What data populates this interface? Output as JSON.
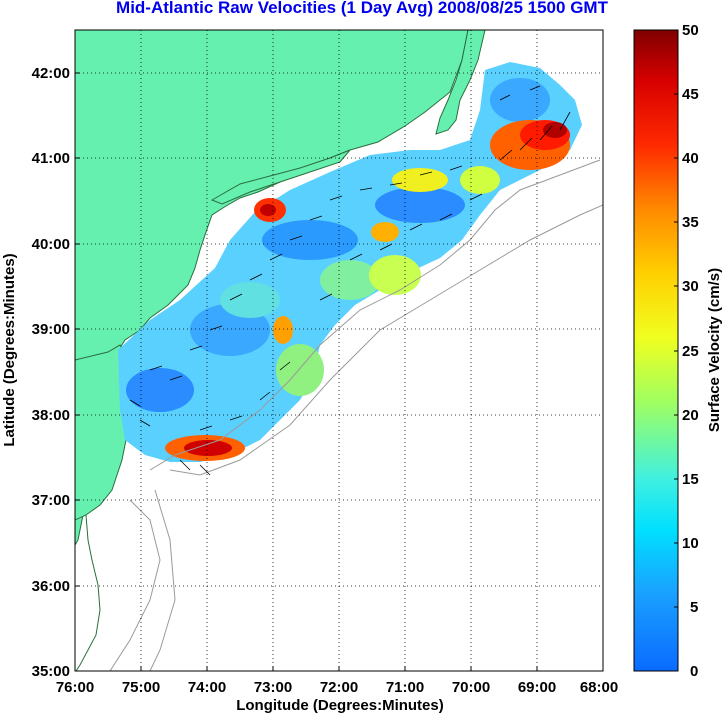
{
  "title": "Mid-Atlantic Raw Velocities (1 Day Avg) 2008/08/25 1500 GMT",
  "map": {
    "xlabel": "Longitude (Degrees:Minutes)",
    "ylabel": "Latitude (Degrees:Minutes)",
    "lon_ticks": [
      "76:00",
      "75:00",
      "74:00",
      "73:00",
      "72:00",
      "71:00",
      "70:00",
      "69:00",
      "68:00"
    ],
    "lat_ticks": [
      "42:00",
      "41:00",
      "40:00",
      "39:00",
      "38:00",
      "37:00",
      "36:00",
      "35:00"
    ],
    "lon_range": [
      -76,
      -68
    ],
    "lat_range": [
      35,
      42.5
    ],
    "grid": "dotted",
    "land_color": "#66f0b0",
    "coast_color": "#2a6e3c",
    "bathymetry_color": "#9a9a9a"
  },
  "colorbar": {
    "label": "Surface Velocity (cm/s)",
    "ticks": [
      "50",
      "45",
      "40",
      "35",
      "30",
      "25",
      "20",
      "15",
      "10",
      "5",
      "0"
    ],
    "range": [
      0,
      50
    ],
    "colormap": "jet"
  }
}
